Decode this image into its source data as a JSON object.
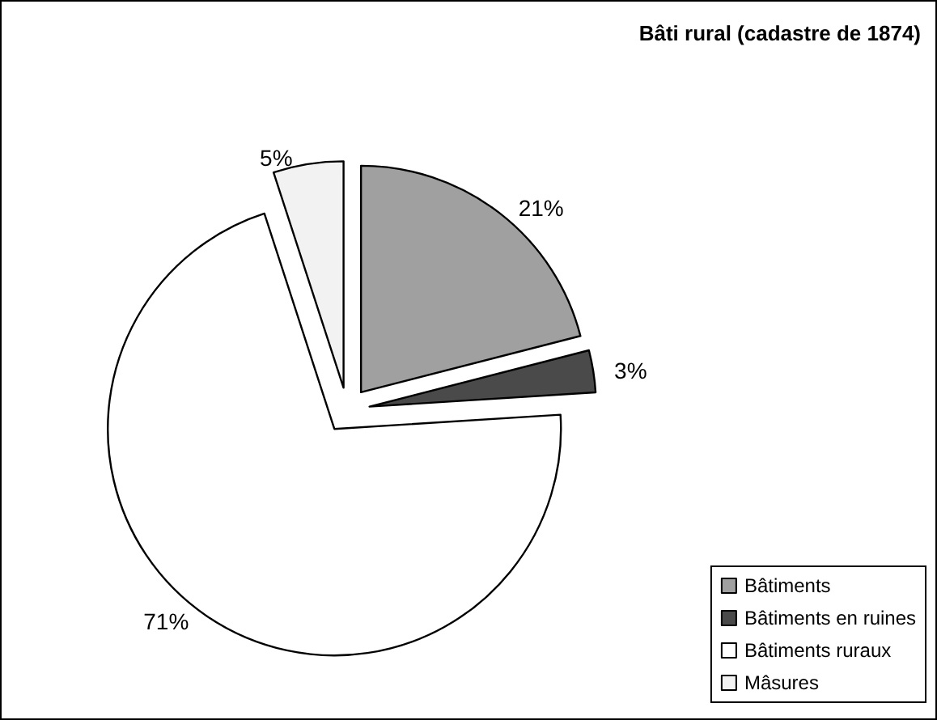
{
  "chart_data": {
    "type": "pie",
    "title": "Bâti rural (cadastre de 1874)",
    "categories": [
      "Bâtiments",
      "Bâtiments en ruines",
      "Bâtiments ruraux",
      "Mâsures"
    ],
    "values": [
      21,
      3,
      71,
      5
    ],
    "colors": [
      "#a0a0a0",
      "#4a4a4a",
      "#ffffff",
      "#f2f2f2"
    ],
    "value_labels": [
      "21%",
      "3%",
      "71%",
      "5%"
    ],
    "legend": "bottom right"
  }
}
